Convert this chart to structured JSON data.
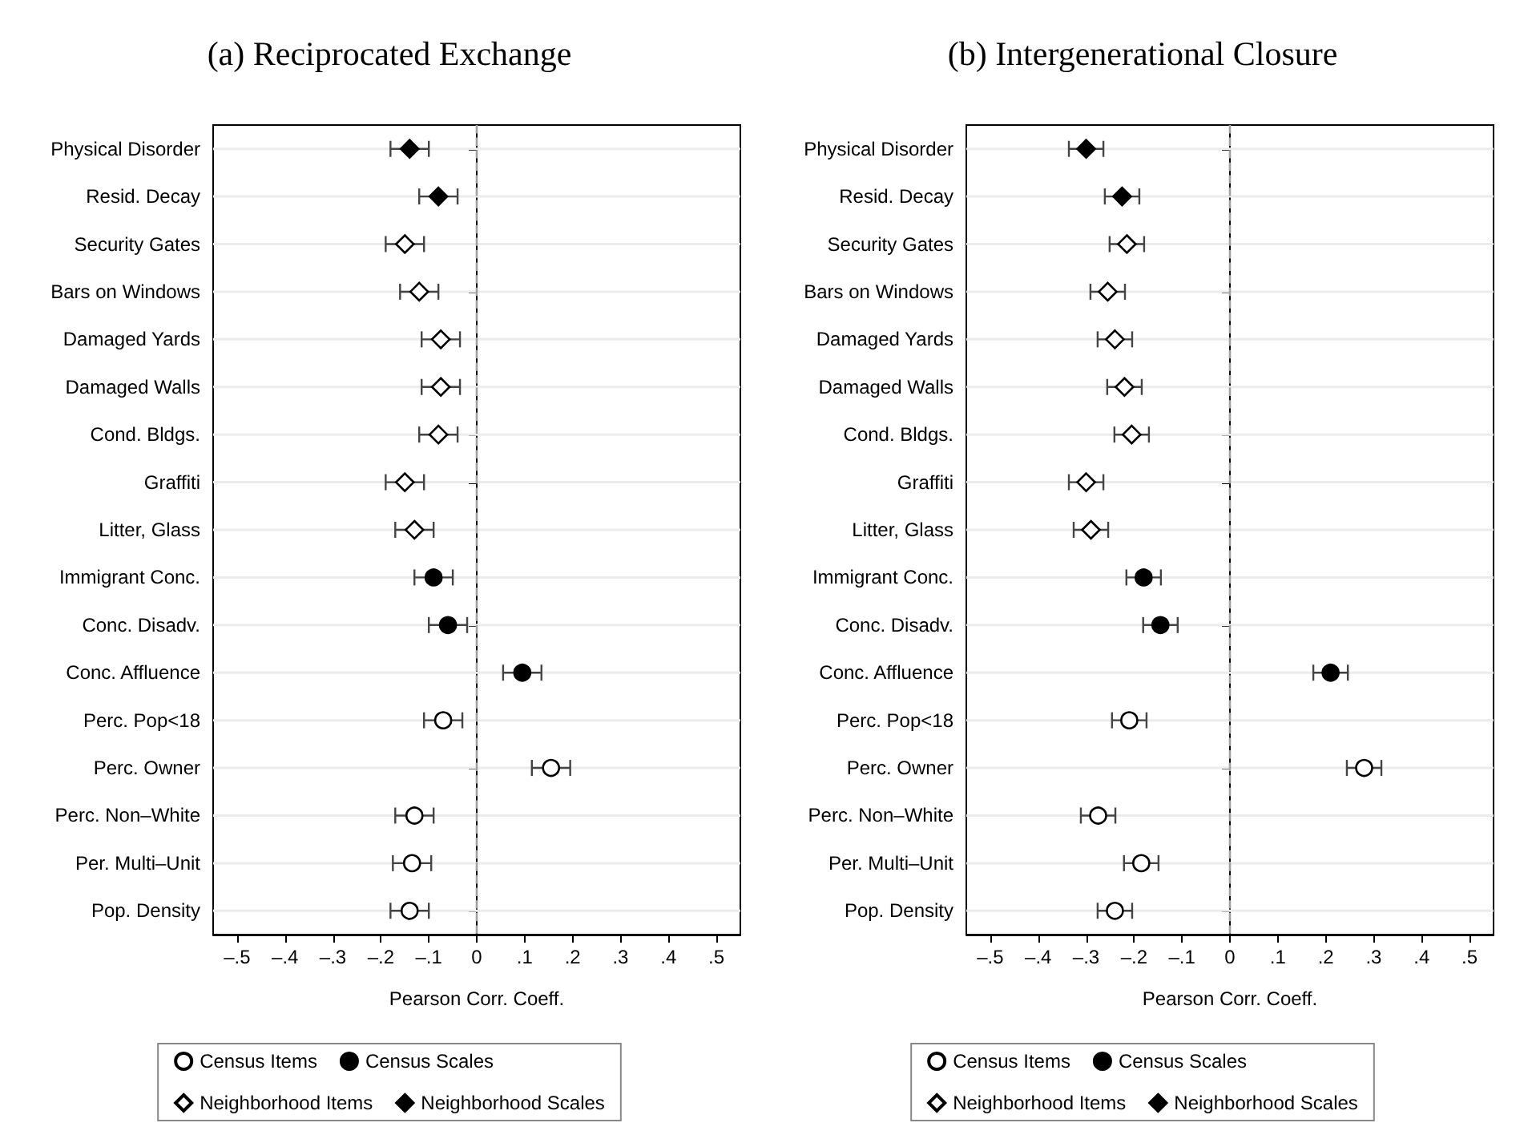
{
  "chart_data": [
    {
      "type": "scatter",
      "orientation": "horizontal",
      "title": "(a) Reciprocated Exchange",
      "xlabel": "Pearson Corr. Coeff.",
      "categories": [
        "Physical Disorder",
        "Resid. Decay",
        "Security Gates",
        "Bars on Windows",
        "Damaged Yards",
        "Damaged Walls",
        "Cond. Bldgs.",
        "Graffiti",
        "Litter, Glass",
        "Immigrant Conc.",
        "Conc. Disadv.",
        "Conc. Affluence",
        "Perc. Pop<18",
        "Perc. Owner",
        "Perc. Non–White",
        "Per. Multi–Unit",
        "Pop. Density"
      ],
      "series": [
        {
          "name": "Census Items",
          "color": "#ffffff",
          "marker": "circle",
          "values": [
            null,
            null,
            null,
            null,
            null,
            null,
            null,
            null,
            null,
            null,
            null,
            null,
            -0.07,
            0.155,
            -0.13,
            -0.135,
            -0.14
          ],
          "errors": [
            null,
            null,
            null,
            null,
            null,
            null,
            null,
            null,
            null,
            null,
            null,
            null,
            0.04,
            0.04,
            0.04,
            0.04,
            0.04
          ]
        },
        {
          "name": "Census Scales",
          "color": "#000000",
          "marker": "circle",
          "values": [
            null,
            null,
            null,
            null,
            null,
            null,
            null,
            null,
            null,
            -0.09,
            -0.06,
            0.095,
            null,
            null,
            null,
            null,
            null
          ],
          "errors": [
            null,
            null,
            null,
            null,
            null,
            null,
            null,
            null,
            null,
            0.04,
            0.04,
            0.04,
            null,
            null,
            null,
            null,
            null
          ]
        },
        {
          "name": "Neighborhood Items",
          "color": "#ffffff",
          "marker": "diamond",
          "values": [
            null,
            null,
            -0.15,
            -0.12,
            -0.075,
            -0.075,
            -0.08,
            -0.15,
            -0.13,
            null,
            null,
            null,
            null,
            null,
            null,
            null,
            null
          ],
          "errors": [
            null,
            null,
            0.04,
            0.04,
            0.04,
            0.04,
            0.04,
            0.04,
            0.04,
            null,
            null,
            null,
            null,
            null,
            null,
            null,
            null
          ]
        },
        {
          "name": "Neighborhood Scales",
          "color": "#000000",
          "marker": "diamond",
          "values": [
            -0.14,
            -0.08,
            null,
            null,
            null,
            null,
            null,
            null,
            null,
            null,
            null,
            null,
            null,
            null,
            null,
            null,
            null
          ],
          "errors": [
            0.04,
            0.04,
            null,
            null,
            null,
            null,
            null,
            null,
            null,
            null,
            null,
            null,
            null,
            null,
            null,
            null,
            null
          ]
        }
      ],
      "xlim": [
        -0.55,
        0.55
      ],
      "xticks": [
        {
          "value": -0.5,
          "label": "–.5"
        },
        {
          "value": -0.4,
          "label": "–.4"
        },
        {
          "value": -0.3,
          "label": "–.3"
        },
        {
          "value": -0.2,
          "label": "–.2"
        },
        {
          "value": -0.1,
          "label": "–.1"
        },
        0,
        {
          "value": 0.1,
          "label": ".1"
        },
        {
          "value": 0.2,
          "label": ".2"
        },
        {
          "value": 0.3,
          "label": ".3"
        },
        {
          "value": 0.4,
          "label": ".4"
        },
        {
          "value": 0.5,
          "label": ".5"
        }
      ],
      "ref_lines": [
        {
          "axis": "x",
          "value": 0,
          "label": null,
          "color": "#a0a0a0",
          "line_style": "dashed"
        }
      ],
      "grid": "y",
      "legend": "bottom"
    },
    {
      "type": "scatter",
      "orientation": "horizontal",
      "title": "(b) Intergenerational Closure",
      "xlabel": "Pearson Corr. Coeff.",
      "categories": [
        "Physical Disorder",
        "Resid. Decay",
        "Security Gates",
        "Bars on Windows",
        "Damaged Yards",
        "Damaged Walls",
        "Cond. Bldgs.",
        "Graffiti",
        "Litter, Glass",
        "Immigrant Conc.",
        "Conc. Disadv.",
        "Conc. Affluence",
        "Perc. Pop<18",
        "Perc. Owner",
        "Perc. Non–White",
        "Per. Multi–Unit",
        "Pop. Density"
      ],
      "series": [
        {
          "name": "Census Items",
          "color": "#ffffff",
          "marker": "circle",
          "values": [
            null,
            null,
            null,
            null,
            null,
            null,
            null,
            null,
            null,
            null,
            null,
            null,
            -0.21,
            0.28,
            -0.275,
            -0.185,
            -0.24
          ],
          "errors": [
            null,
            null,
            null,
            null,
            null,
            null,
            null,
            null,
            null,
            null,
            null,
            null,
            0.036,
            0.036,
            0.036,
            0.036,
            0.036
          ]
        },
        {
          "name": "Census Scales",
          "color": "#000000",
          "marker": "circle",
          "values": [
            null,
            null,
            null,
            null,
            null,
            null,
            null,
            null,
            null,
            -0.18,
            -0.145,
            0.21,
            null,
            null,
            null,
            null,
            null
          ],
          "errors": [
            null,
            null,
            null,
            null,
            null,
            null,
            null,
            null,
            null,
            0.036,
            0.036,
            0.036,
            null,
            null,
            null,
            null,
            null
          ]
        },
        {
          "name": "Neighborhood Items",
          "color": "#ffffff",
          "marker": "diamond",
          "values": [
            null,
            null,
            -0.215,
            -0.255,
            -0.24,
            -0.22,
            -0.205,
            -0.3,
            -0.29,
            null,
            null,
            null,
            null,
            null,
            null,
            null,
            null
          ],
          "errors": [
            null,
            null,
            0.036,
            0.036,
            0.036,
            0.036,
            0.036,
            0.036,
            0.036,
            null,
            null,
            null,
            null,
            null,
            null,
            null,
            null
          ]
        },
        {
          "name": "Neighborhood Scales",
          "color": "#000000",
          "marker": "diamond",
          "values": [
            -0.3,
            -0.225,
            null,
            null,
            null,
            null,
            null,
            null,
            null,
            null,
            null,
            null,
            null,
            null,
            null,
            null,
            null
          ],
          "errors": [
            0.036,
            0.036,
            null,
            null,
            null,
            null,
            null,
            null,
            null,
            null,
            null,
            null,
            null,
            null,
            null,
            null,
            null
          ]
        }
      ],
      "xlim": [
        -0.55,
        0.55
      ],
      "xticks": [
        {
          "value": -0.5,
          "label": "–.5"
        },
        {
          "value": -0.4,
          "label": "–.4"
        },
        {
          "value": -0.3,
          "label": "–.3"
        },
        {
          "value": -0.2,
          "label": "–.2"
        },
        {
          "value": -0.1,
          "label": "–.1"
        },
        0,
        {
          "value": 0.1,
          "label": ".1"
        },
        {
          "value": 0.2,
          "label": ".2"
        },
        {
          "value": 0.3,
          "label": ".3"
        },
        {
          "value": 0.4,
          "label": ".4"
        },
        {
          "value": 0.5,
          "label": ".5"
        }
      ],
      "ref_lines": [
        {
          "axis": "x",
          "value": 0,
          "label": null,
          "color": "#a0a0a0",
          "line_style": "dashed"
        }
      ],
      "grid": "y",
      "legend": "bottom"
    }
  ]
}
